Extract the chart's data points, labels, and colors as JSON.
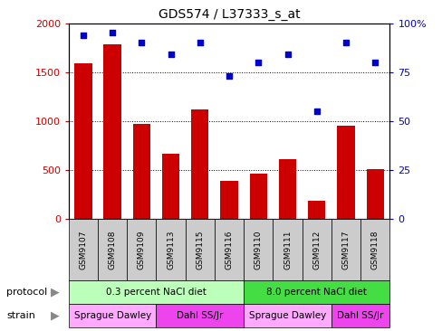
{
  "title": "GDS574 / L37333_s_at",
  "samples": [
    "GSM9107",
    "GSM9108",
    "GSM9109",
    "GSM9113",
    "GSM9115",
    "GSM9116",
    "GSM9110",
    "GSM9111",
    "GSM9112",
    "GSM9117",
    "GSM9118"
  ],
  "counts": [
    1590,
    1780,
    970,
    670,
    1120,
    390,
    460,
    610,
    190,
    950,
    510
  ],
  "percentiles": [
    94,
    95,
    90,
    84,
    90,
    73,
    80,
    84,
    55,
    90,
    80
  ],
  "bar_color": "#cc0000",
  "dot_color": "#0000cc",
  "ylim_left": [
    0,
    2000
  ],
  "ylim_right": [
    0,
    100
  ],
  "yticks_left": [
    0,
    500,
    1000,
    1500,
    2000
  ],
  "yticks_right": [
    0,
    25,
    50,
    75,
    100
  ],
  "yticklabels_right": [
    "0",
    "25",
    "50",
    "75",
    "100%"
  ],
  "protocol_labels": [
    "0.3 percent NaCl diet",
    "8.0 percent NaCl diet"
  ],
  "protocol_colors": [
    "#bbffbb",
    "#44dd44"
  ],
  "strain_labels": [
    "Sprague Dawley",
    "Dahl SS/Jr",
    "Sprague Dawley",
    "Dahl SS/Jr"
  ],
  "strain_colors": [
    "#ffaaff",
    "#ee44ee",
    "#ffaaff",
    "#ee44ee"
  ],
  "sample_bg": "#cccccc",
  "bg_color": "#ffffff"
}
